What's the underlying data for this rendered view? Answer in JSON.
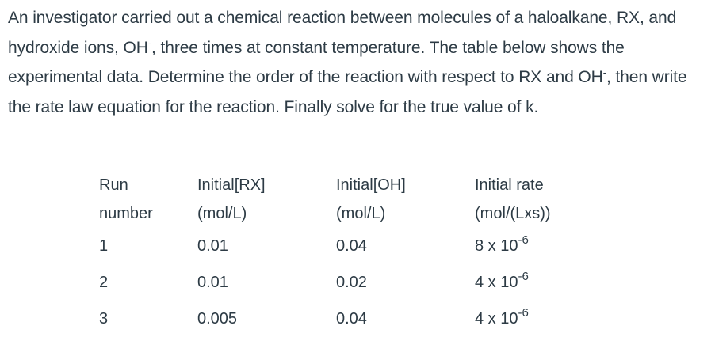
{
  "question": {
    "part1": "An investigator carried out a chemical reaction between molecules of a haloalkane, RX, and hydroxide ions, OH",
    "charge1": "-",
    "part2": ", three times at constant temperature.  The table below shows the experimental data.  Determine the order of the reaction with respect to RX and OH",
    "charge2": "-",
    "part3": ", then write the rate law equation for the reaction.  Finally solve for the true value of k."
  },
  "table": {
    "headers": [
      [
        "Run",
        "number"
      ],
      [
        "Initial[RX]",
        "(mol/L)"
      ],
      [
        "Initial[OH]",
        "(mol/L)"
      ],
      [
        "Initial rate",
        "(mol/(Lxs))"
      ]
    ],
    "rows": [
      {
        "run": "1",
        "rx": "0.01",
        "oh": "0.04",
        "rate_base": "8 x 10",
        "rate_exp": "-6"
      },
      {
        "run": "2",
        "rx": "0.01",
        "oh": "0.02",
        "rate_base": "4 x 10",
        "rate_exp": "-6"
      },
      {
        "run": "3",
        "rx": "0.005",
        "oh": "0.04",
        "rate_base": "4 x 10",
        "rate_exp": "-6"
      }
    ]
  }
}
